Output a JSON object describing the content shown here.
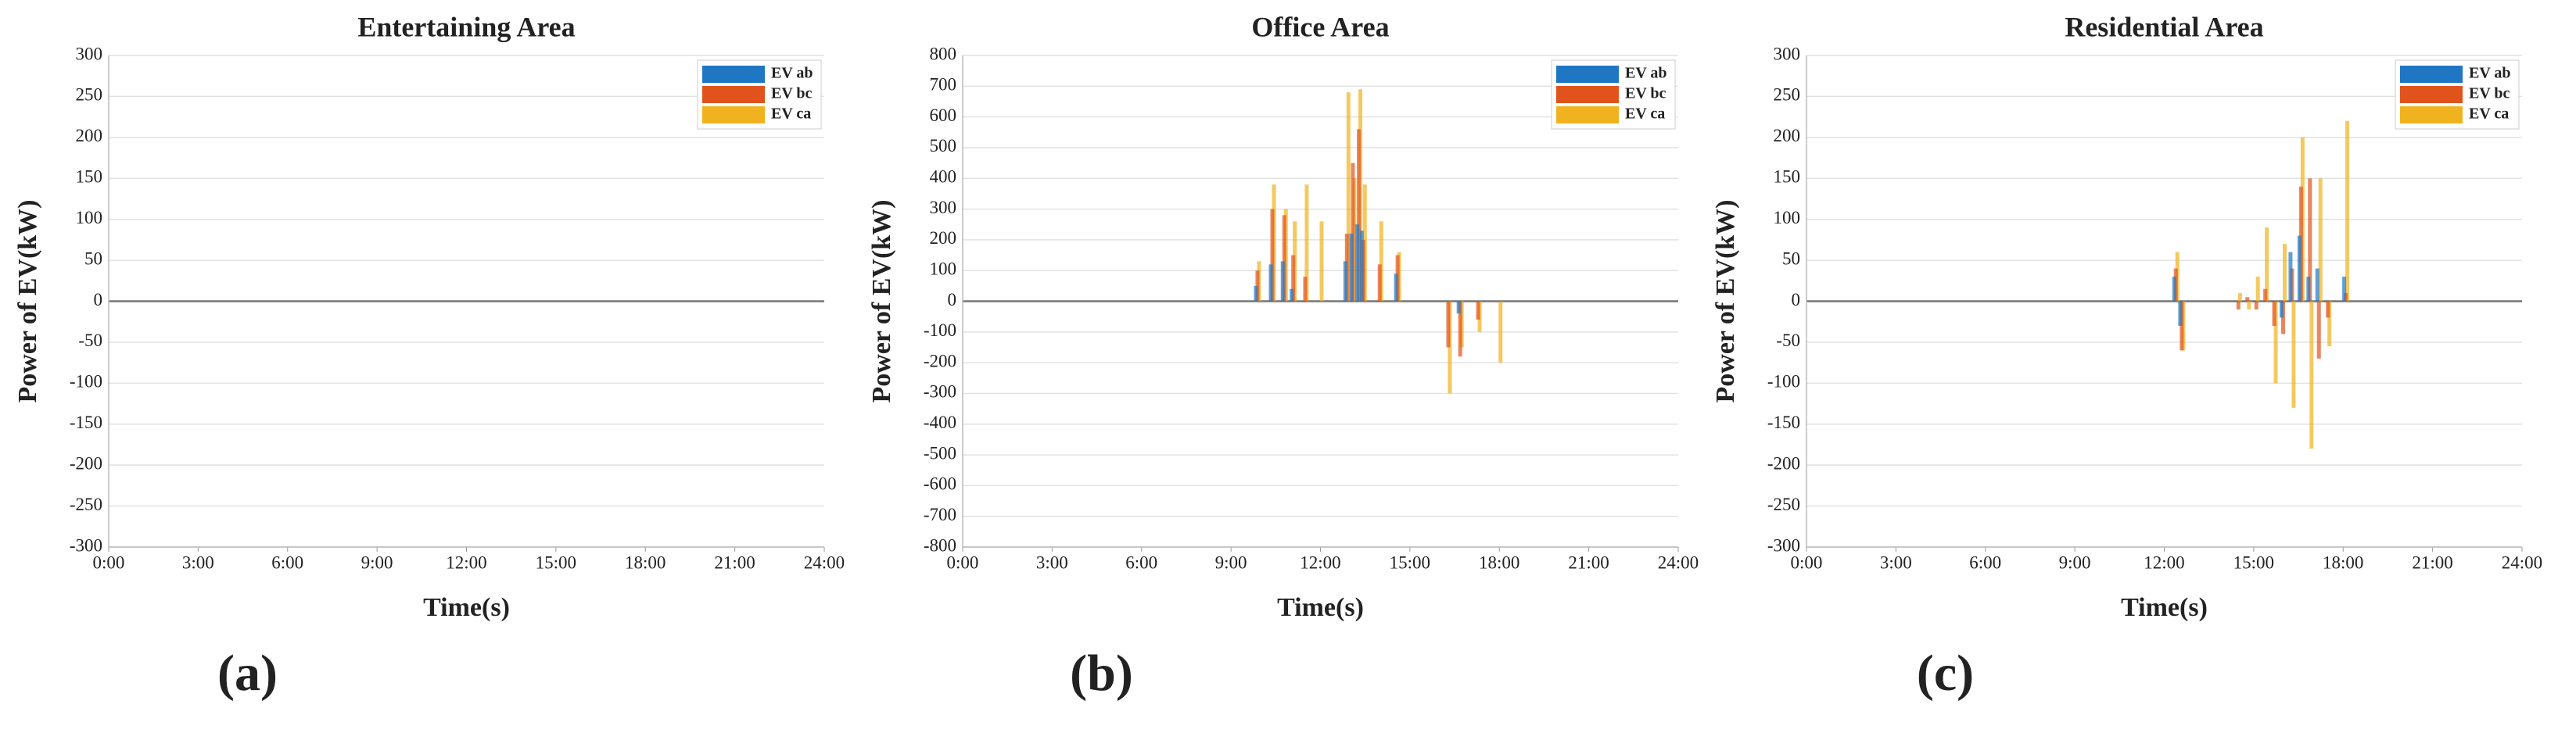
{
  "chart_data": [
    {
      "type": "bar",
      "title": "Entertaining Area",
      "panel": "(a)",
      "xlabel": "Time(s)",
      "ylabel": "Power of EV(kW)",
      "x": [],
      "series": [
        {
          "name": "EV ab",
          "color": "#1f77c4",
          "values": []
        },
        {
          "name": "EV bc",
          "color": "#e0531c",
          "values": []
        },
        {
          "name": "EV ca",
          "color": "#f0b21e",
          "values": []
        }
      ],
      "xlim": [
        0,
        24
      ],
      "xticks": [
        {
          "value": 0,
          "label": "0:00"
        },
        {
          "value": 3,
          "label": "3:00"
        },
        {
          "value": 6,
          "label": "6:00"
        },
        {
          "value": 9,
          "label": "9:00"
        },
        {
          "value": 12,
          "label": "12:00"
        },
        {
          "value": 15,
          "label": "15:00"
        },
        {
          "value": 18,
          "label": "18:00"
        },
        {
          "value": 21,
          "label": "21:00"
        },
        {
          "value": 24,
          "label": "24:00"
        }
      ],
      "ylim": [
        -300,
        300
      ],
      "yticks": [
        -300,
        -250,
        -200,
        -150,
        -100,
        -50,
        0,
        50,
        100,
        150,
        200,
        250,
        300
      ],
      "grid": true,
      "legend": "upper-right"
    },
    {
      "type": "bar",
      "title": "Office Area",
      "panel": "(b)",
      "xlabel": "Time(s)",
      "ylabel": "Power of EV(kW)",
      "x": [
        9.9,
        10.4,
        10.8,
        11.1,
        11.5,
        12.0,
        12.9,
        13.1,
        13.3,
        13.45,
        14.0,
        14.6,
        16.3,
        16.7,
        17.3,
        18.0
      ],
      "series": [
        {
          "name": "EV ab",
          "color": "#1f77c4",
          "values": [
            50,
            120,
            130,
            40,
            0,
            0,
            130,
            220,
            250,
            230,
            0,
            90,
            0,
            -40,
            0,
            0
          ]
        },
        {
          "name": "EV bc",
          "color": "#e0531c",
          "values": [
            100,
            300,
            280,
            150,
            80,
            0,
            220,
            450,
            560,
            200,
            120,
            150,
            -150,
            -180,
            -60,
            0
          ]
        },
        {
          "name": "EV ca",
          "color": "#f0b21e",
          "values": [
            130,
            380,
            300,
            260,
            380,
            260,
            680,
            400,
            690,
            380,
            260,
            160,
            -300,
            -150,
            -100,
            -200
          ]
        }
      ],
      "xlim": [
        0,
        24
      ],
      "xticks": [
        {
          "value": 0,
          "label": "0:00"
        },
        {
          "value": 3,
          "label": "3:00"
        },
        {
          "value": 6,
          "label": "6:00"
        },
        {
          "value": 9,
          "label": "9:00"
        },
        {
          "value": 12,
          "label": "12:00"
        },
        {
          "value": 15,
          "label": "15:00"
        },
        {
          "value": 18,
          "label": "18:00"
        },
        {
          "value": 21,
          "label": "21:00"
        },
        {
          "value": 24,
          "label": "24:00"
        }
      ],
      "ylim": [
        -800,
        800
      ],
      "yticks": [
        -800,
        -700,
        -600,
        -500,
        -400,
        -300,
        -200,
        -100,
        0,
        100,
        200,
        300,
        400,
        500,
        600,
        700,
        800
      ],
      "grid": true,
      "legend": "upper-right"
    },
    {
      "type": "bar",
      "title": "Residential Area",
      "panel": "(c)",
      "xlabel": "Time(s)",
      "ylabel": "Power of EV(kW)",
      "x": [
        12.4,
        12.6,
        14.5,
        14.8,
        15.1,
        15.4,
        15.7,
        16.0,
        16.3,
        16.6,
        16.9,
        17.2,
        17.5,
        18.1
      ],
      "series": [
        {
          "name": "EV ab",
          "color": "#1f77c4",
          "values": [
            30,
            -30,
            0,
            0,
            0,
            0,
            0,
            -20,
            60,
            80,
            30,
            40,
            0,
            30
          ]
        },
        {
          "name": "EV bc",
          "color": "#e0531c",
          "values": [
            40,
            -60,
            -10,
            5,
            -10,
            15,
            -30,
            -40,
            40,
            140,
            150,
            -70,
            -20,
            10
          ]
        },
        {
          "name": "EV ca",
          "color": "#f0b21e",
          "values": [
            60,
            -60,
            10,
            -10,
            30,
            90,
            -100,
            70,
            -130,
            200,
            -180,
            150,
            -55,
            220
          ]
        }
      ],
      "xlim": [
        0,
        24
      ],
      "xticks": [
        {
          "value": 0,
          "label": "0:00"
        },
        {
          "value": 3,
          "label": "3:00"
        },
        {
          "value": 6,
          "label": "6:00"
        },
        {
          "value": 9,
          "label": "9:00"
        },
        {
          "value": 12,
          "label": "12:00"
        },
        {
          "value": 15,
          "label": "15:00"
        },
        {
          "value": 18,
          "label": "18:00"
        },
        {
          "value": 21,
          "label": "21:00"
        },
        {
          "value": 24,
          "label": "24:00"
        }
      ],
      "ylim": [
        -300,
        300
      ],
      "yticks": [
        -300,
        -250,
        -200,
        -150,
        -100,
        -50,
        0,
        50,
        100,
        150,
        200,
        250,
        300
      ],
      "grid": true,
      "legend": "upper-right"
    }
  ]
}
